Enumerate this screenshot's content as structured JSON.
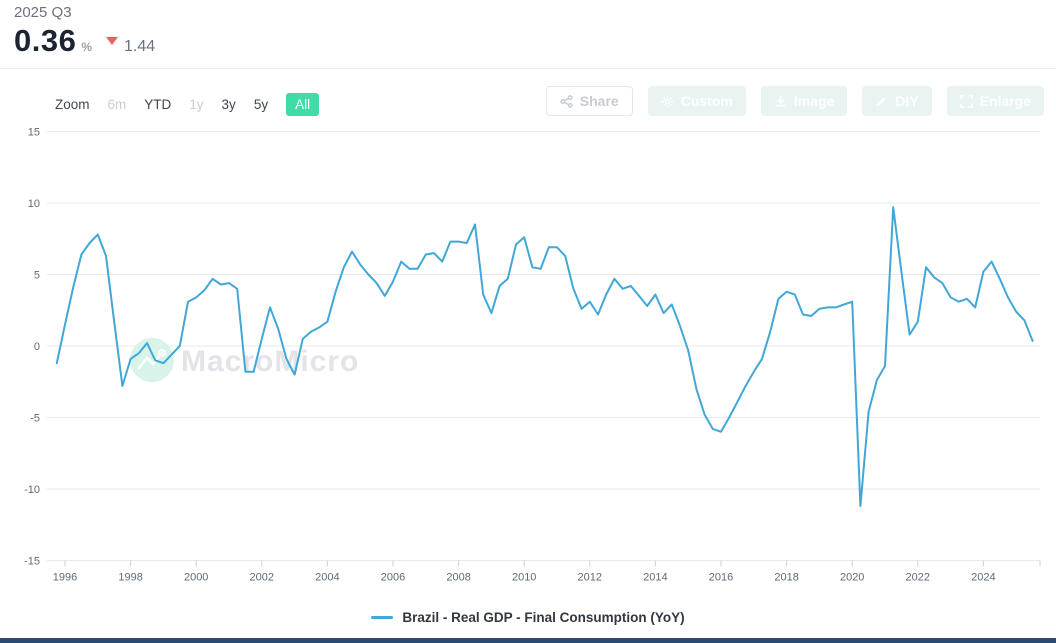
{
  "header": {
    "period": "2025 Q3",
    "value": "0.36",
    "unit": "%",
    "change": "1.44",
    "change_direction": "down",
    "change_color": "#f25f5f"
  },
  "toolbar": {
    "zoom_label": "Zoom",
    "ranges": [
      {
        "label": "6m",
        "state": "disabled"
      },
      {
        "label": "YTD",
        "state": "normal"
      },
      {
        "label": "1y",
        "state": "disabled"
      },
      {
        "label": "3y",
        "state": "normal"
      },
      {
        "label": "5y",
        "state": "normal"
      },
      {
        "label": "All",
        "state": "active"
      }
    ],
    "active_range_color": "#3edca6",
    "actions": [
      {
        "label": "Share",
        "icon": "share-icon",
        "style": "outline"
      },
      {
        "label": "Custom",
        "icon": "gear-icon",
        "style": "soft"
      },
      {
        "label": "Image",
        "icon": "download-icon",
        "style": "soft"
      },
      {
        "label": "DIY",
        "icon": "pencil-icon",
        "style": "soft"
      },
      {
        "label": "Enlarge",
        "icon": "expand-icon",
        "style": "soft"
      }
    ]
  },
  "watermark": {
    "text": "MacroMicro",
    "logo": "macromicro-logo-icon",
    "logo_color": "#d8f4ea"
  },
  "legend": {
    "label": "Brazil - Real GDP - Final Consumption (YoY)"
  },
  "chart_data": {
    "type": "line",
    "title": "",
    "xlabel": "",
    "ylabel": "",
    "unit": "%",
    "grid": true,
    "legend_position": "bottom",
    "ylim": [
      -15,
      15
    ],
    "yticks": [
      15,
      10,
      5,
      0,
      -5,
      -10,
      -15
    ],
    "xticks": [
      1996,
      1998,
      2000,
      2002,
      2004,
      2006,
      2008,
      2010,
      2012,
      2014,
      2016,
      2018,
      2020,
      2022,
      2024
    ],
    "frequency": "quarterly",
    "x_start_year": 1995.75,
    "x_step": 0.25,
    "start_period": "1995 Q4",
    "end_period": "2025 Q3",
    "series": [
      {
        "name": "Brazil - Real GDP - Final Consumption (YoY)",
        "color": "#41a7d6",
        "values": [
          -1.2,
          1.5,
          4.1,
          6.4,
          7.2,
          7.8,
          6.3,
          1.7,
          -2.8,
          -0.9,
          -0.5,
          0.2,
          -1.0,
          -1.2,
          -0.6,
          0.0,
          3.1,
          3.4,
          3.9,
          4.7,
          4.3,
          4.4,
          4.0,
          -1.8,
          -1.8,
          0.5,
          2.7,
          1.2,
          -0.9,
          -2.0,
          0.5,
          1.0,
          1.3,
          1.7,
          3.8,
          5.5,
          6.6,
          5.7,
          5.0,
          4.4,
          3.5,
          4.5,
          5.9,
          5.4,
          5.4,
          6.4,
          6.5,
          5.9,
          7.3,
          7.3,
          7.2,
          8.5,
          3.6,
          2.3,
          4.2,
          4.7,
          7.1,
          7.6,
          5.5,
          5.4,
          6.9,
          6.9,
          6.3,
          4.0,
          2.6,
          3.1,
          2.2,
          3.6,
          4.7,
          4.0,
          4.2,
          3.5,
          2.8,
          3.6,
          2.3,
          2.9,
          1.4,
          -0.3,
          -3.0,
          -4.8,
          -5.8,
          -6.0,
          -5.0,
          -3.9,
          -2.8,
          -1.8,
          -0.9,
          1.0,
          3.3,
          3.8,
          3.6,
          2.2,
          2.1,
          2.6,
          2.7,
          2.7,
          2.9,
          3.1,
          -11.2,
          -4.6,
          -2.4,
          -1.4,
          9.7,
          5.2,
          0.8,
          1.7,
          5.5,
          4.8,
          4.4,
          3.4,
          3.1,
          3.3,
          2.7,
          5.2,
          5.9,
          4.7,
          3.4,
          2.4,
          1.8,
          0.36
        ]
      }
    ]
  }
}
